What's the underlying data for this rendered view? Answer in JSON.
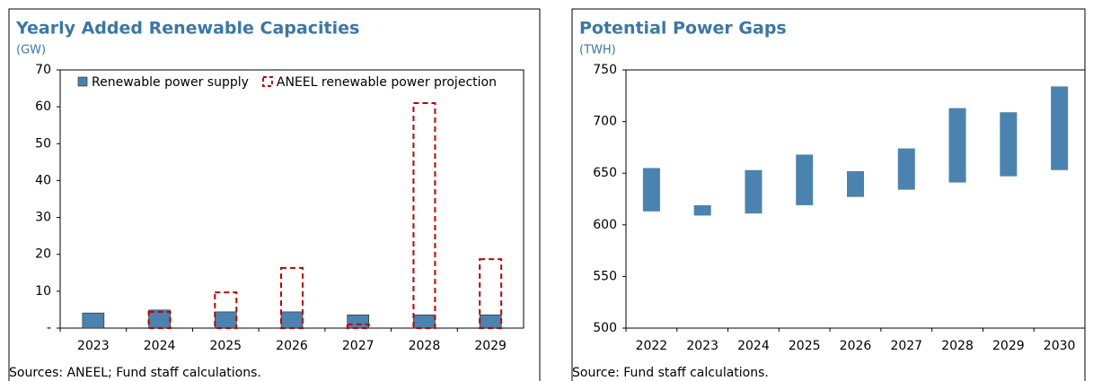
{
  "chart_data": [
    {
      "type": "bar",
      "title": "Yearly Added Renewable Capacities",
      "subtitle": "(GW)",
      "categories": [
        "2023",
        "2024",
        "2025",
        "2026",
        "2027",
        "2028",
        "2029"
      ],
      "series": [
        {
          "name": "Renewable power supply",
          "color": "#4a83b0",
          "style": "solid",
          "values": [
            4.1,
            4.9,
            4.4,
            4.4,
            3.6,
            3.6,
            3.6
          ]
        },
        {
          "name": "ANEEL renewable power projection",
          "color": "#c00000",
          "style": "dashed",
          "values": [
            null,
            4.4,
            9.7,
            16.3,
            1.0,
            61.0,
            18.7
          ]
        }
      ],
      "ylim": [
        0,
        70
      ],
      "yticks": [
        {
          "value": 0,
          "label": "-"
        },
        10,
        20,
        30,
        40,
        50,
        60,
        70
      ],
      "legend": "top-left",
      "note": "Sources: ANEEL; Fund staff calculations."
    },
    {
      "type": "floating-bar",
      "title": "Potential Power Gaps",
      "subtitle": "(TWH)",
      "categories": [
        "2022",
        "2023",
        "2024",
        "2025",
        "2026",
        "2027",
        "2028",
        "2029",
        "2030"
      ],
      "color": "#4a83b0",
      "ranges": [
        [
          613,
          655
        ],
        [
          609,
          619
        ],
        [
          611,
          653
        ],
        [
          619,
          668
        ],
        [
          627,
          652
        ],
        [
          634,
          674
        ],
        [
          641,
          713
        ],
        [
          647,
          709
        ],
        [
          653,
          734
        ]
      ],
      "ylim": [
        500,
        750
      ],
      "yticks": [
        500,
        550,
        600,
        650,
        700,
        750
      ],
      "note": "Source: Fund staff calculations."
    }
  ]
}
